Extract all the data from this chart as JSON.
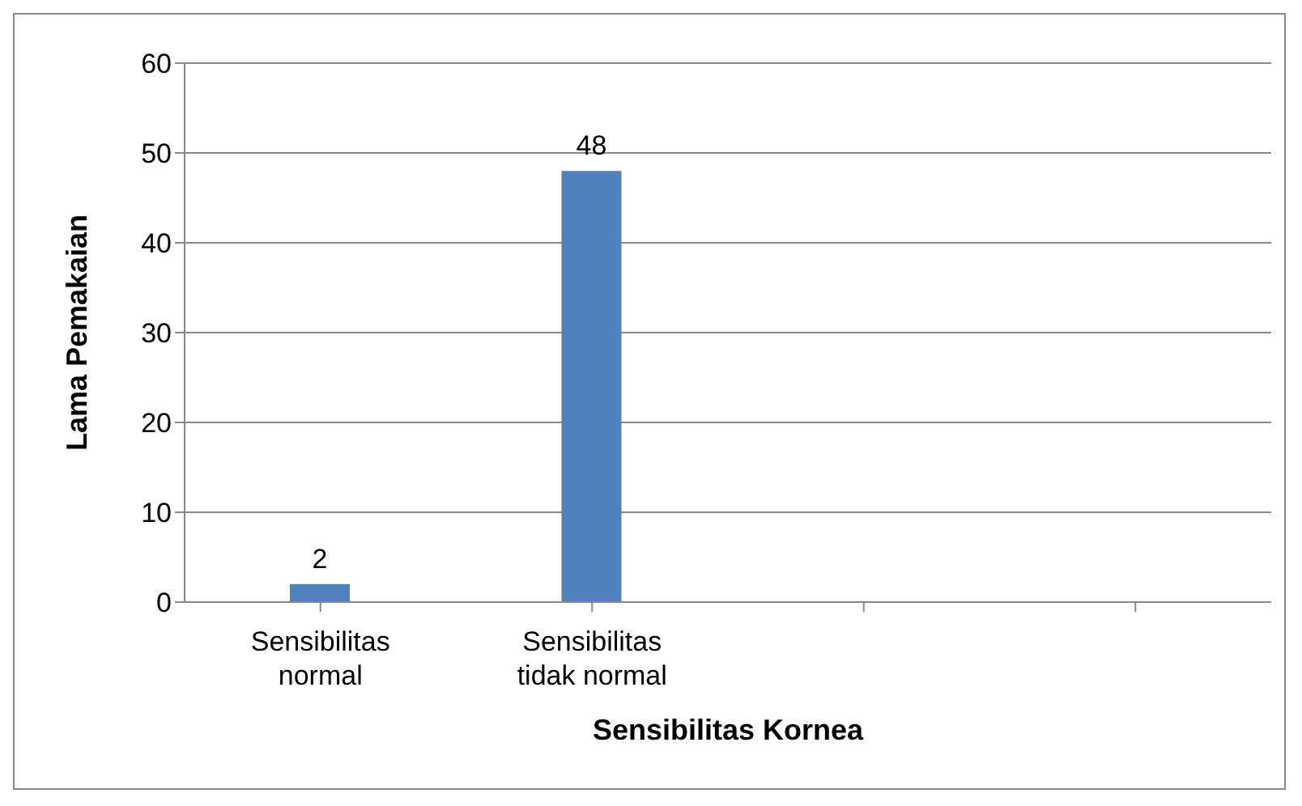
{
  "chart_data": {
    "type": "bar",
    "xlabel": "Sensibilitas Kornea",
    "ylabel": "Lama Pemakaian",
    "categories": [
      "Sensibilitas normal",
      "Sensibilitas tidak normal",
      null,
      null
    ],
    "values": [
      2,
      48,
      null,
      null
    ],
    "color": "#4f81bd",
    "ylim": [
      0,
      60
    ],
    "yticks": [
      0,
      10,
      20,
      30,
      40,
      50,
      60
    ],
    "grid": "y",
    "data_labels": true
  }
}
